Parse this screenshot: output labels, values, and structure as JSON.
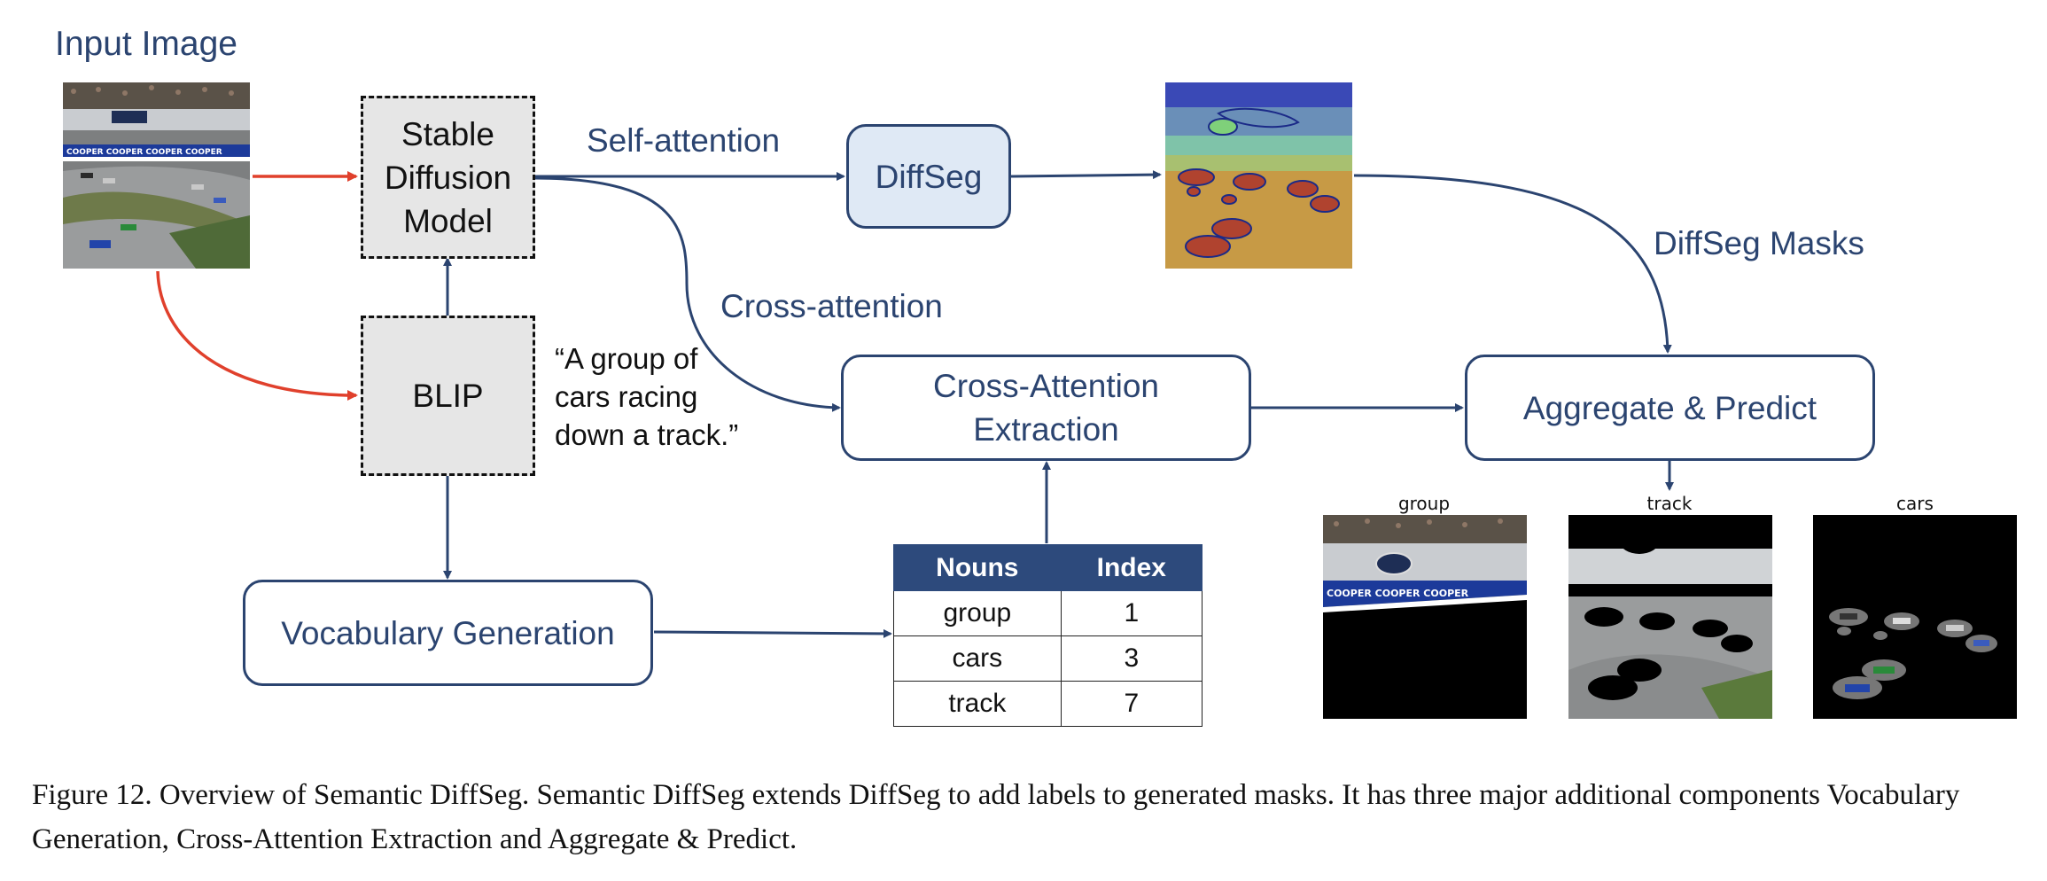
{
  "labels": {
    "input_image": "Input Image",
    "self_attention": "Self-attention",
    "cross_attention": "Cross-attention",
    "diffseg_masks": "DiffSeg Masks"
  },
  "nodes": {
    "stable_diffusion": [
      "Stable",
      "Diffusion",
      "Model"
    ],
    "blip": "BLIP",
    "diffseg": "DiffSeg",
    "cross_attention_extraction": [
      "Cross-Attention",
      "Extraction"
    ],
    "vocabulary_generation": "Vocabulary Generation",
    "aggregate_predict": "Aggregate & Predict"
  },
  "caption_quote": [
    "“A group of",
    "cars racing",
    "down a track.”"
  ],
  "nouns_table": {
    "headers": [
      "Nouns",
      "Index"
    ],
    "rows": [
      {
        "noun": "group",
        "index": "1"
      },
      {
        "noun": "cars",
        "index": "3"
      },
      {
        "noun": "track",
        "index": "7"
      }
    ]
  },
  "outputs": [
    "group",
    "track",
    "cars"
  ],
  "figure_caption": "Figure 12. Overview of Semantic DiffSeg. Semantic DiffSeg extends DiffSeg to add labels to generated masks. It has three major additional components Vocabulary Generation, Cross-Attention Extraction and Aggregate & Predict.",
  "colors": {
    "navy": "#2b4470",
    "red_arrow": "#e0402c",
    "diffseg_fill": "#dfe9f5",
    "dashed_fill": "#e6e6e6",
    "table_header": "#2d4a7c"
  }
}
